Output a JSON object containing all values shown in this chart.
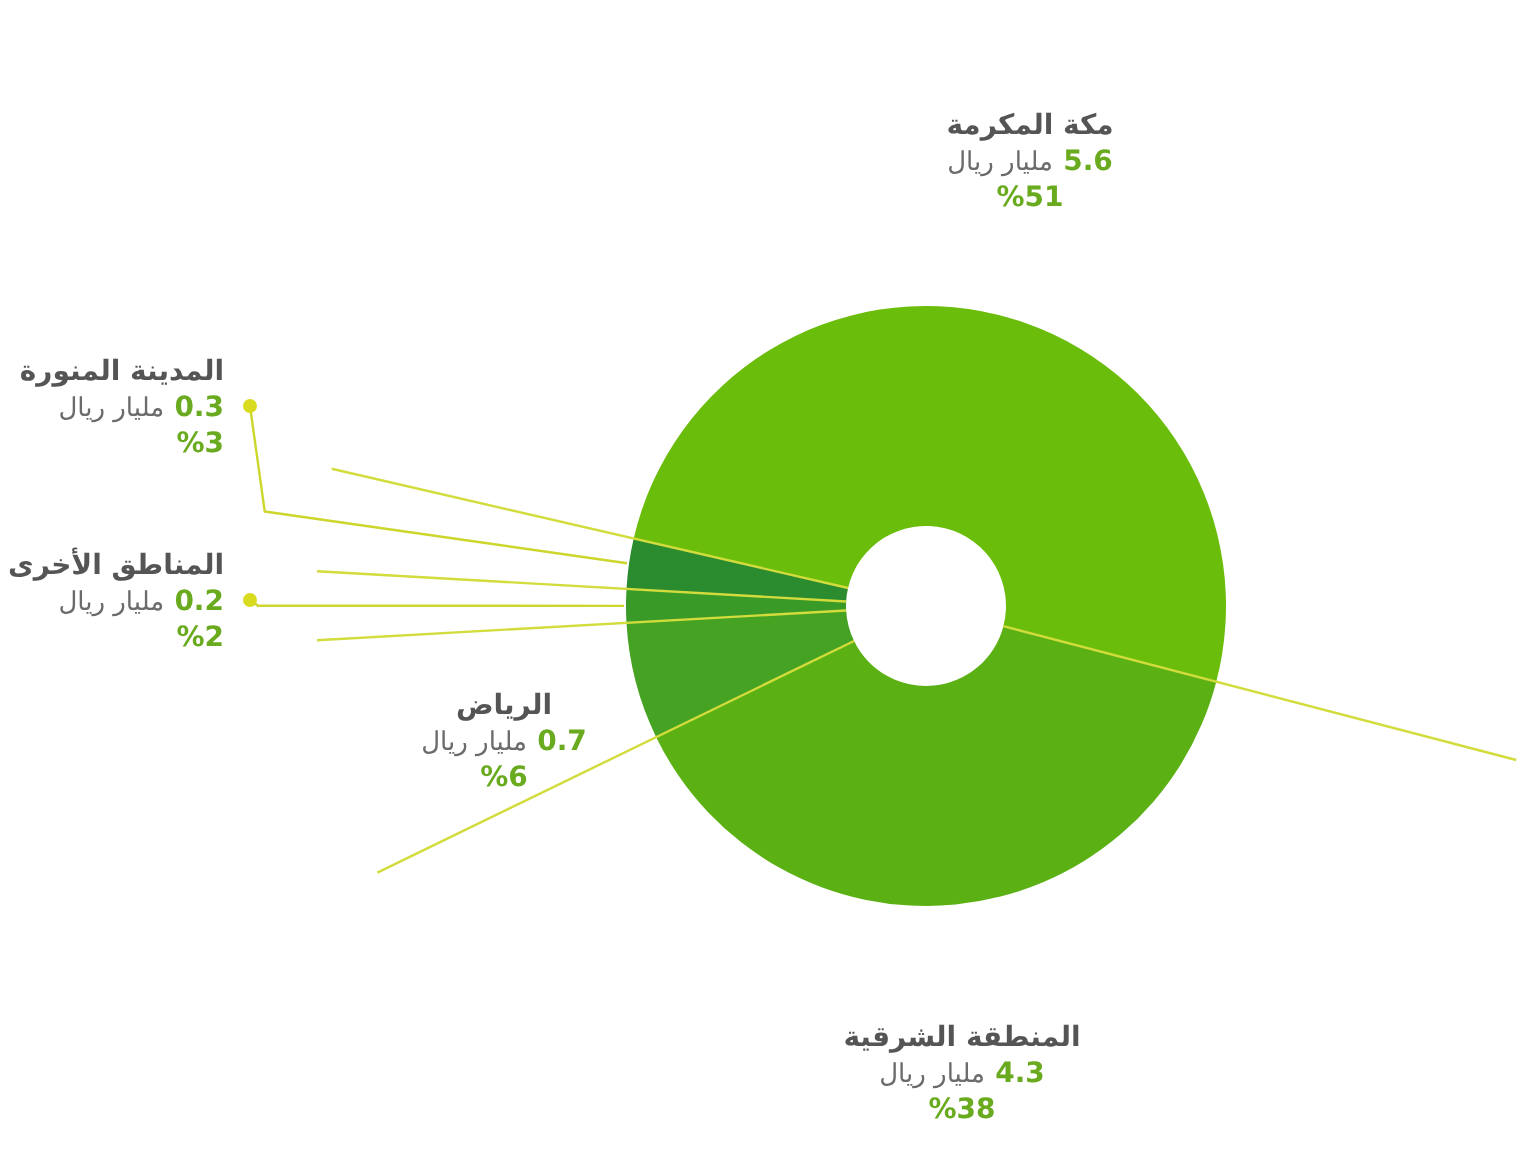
{
  "chart_data": {
    "type": "donut",
    "categories": [
      "مكة المكرمة",
      "المنطقة الشرقية",
      "الرياض",
      "المناطق الأخرى",
      "المدينة المنورة"
    ],
    "values": [
      5.6,
      4.3,
      0.7,
      0.2,
      0.3
    ],
    "colors": [
      "#6bbd0b",
      "#5bb114",
      "#45a222",
      "#3a9a28",
      "#2b8c2f"
    ],
    "value_labels": [
      "5.6 مليار ريال\n%51",
      "4.3 مليار ريال\n%38",
      "0.7 مليار ريال\n%6",
      "0.2 مليار ريال\n%2",
      "0.3 مليار ريال\n%3"
    ]
  }
}
